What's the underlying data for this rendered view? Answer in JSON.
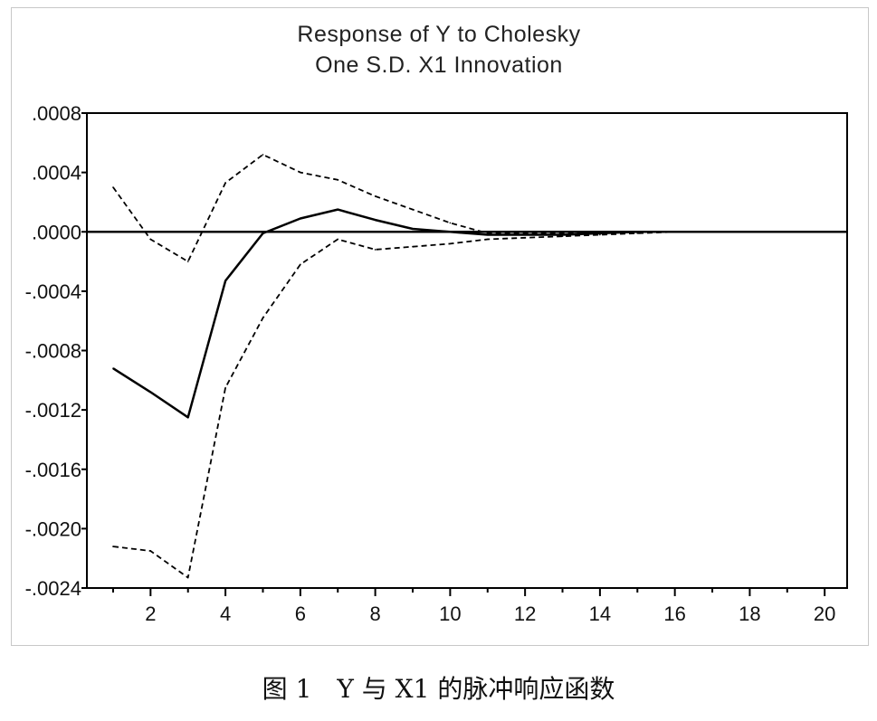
{
  "chart_data": {
    "type": "line",
    "title": "Response of Y to Cholesky",
    "subtitle": "One S.D. X1 Innovation",
    "xlim": [
      0.3,
      20.6
    ],
    "ylim": [
      -0.0024,
      0.0008
    ],
    "x_ticks": [
      2,
      4,
      6,
      8,
      10,
      12,
      14,
      16,
      18,
      20
    ],
    "y_ticks": [
      ".0008",
      ".0004",
      ".0000",
      "-.0004",
      "-.0008",
      "-.0012",
      "-.0016",
      "-.0020",
      "-.0024"
    ],
    "y_tick_values": [
      0.0008,
      0.0004,
      0.0,
      -0.0004,
      -0.0008,
      -0.0012,
      -0.0016,
      -0.002,
      -0.0024
    ],
    "zero_line": true,
    "x": [
      1,
      2,
      3,
      4,
      5,
      6,
      7,
      8,
      9,
      10,
      11,
      12,
      13,
      14,
      15,
      16,
      17,
      18,
      19,
      20
    ],
    "series": [
      {
        "role": "response",
        "style": "solid",
        "values": [
          -0.00092,
          -0.00108,
          -0.00125,
          -0.00033,
          -1e-05,
          9e-05,
          0.00015,
          8e-05,
          2e-05,
          0.0,
          -2e-05,
          -2e-05,
          -2e-05,
          -1e-05,
          0.0,
          0.0,
          0.0,
          0.0,
          0.0,
          0.0
        ]
      },
      {
        "role": "upper-band",
        "style": "dashed",
        "values": [
          0.0003,
          -5e-05,
          -0.0002,
          0.00033,
          0.00052,
          0.0004,
          0.00035,
          0.00024,
          0.00015,
          6e-05,
          -1e-05,
          -1e-05,
          -1e-05,
          0.0,
          0.0,
          0.0,
          0.0,
          0.0,
          0.0,
          0.0
        ]
      },
      {
        "role": "lower-band",
        "style": "dashed",
        "values": [
          -0.00212,
          -0.00215,
          -0.00233,
          -0.00105,
          -0.00058,
          -0.00022,
          -5e-05,
          -0.00012,
          -0.0001,
          -8e-05,
          -5e-05,
          -4e-05,
          -3e-05,
          -2e-05,
          -1e-05,
          0.0,
          0.0,
          0.0,
          0.0,
          0.0
        ]
      }
    ]
  },
  "caption": "图 1　Y 与 X1 的脉冲响应函数"
}
